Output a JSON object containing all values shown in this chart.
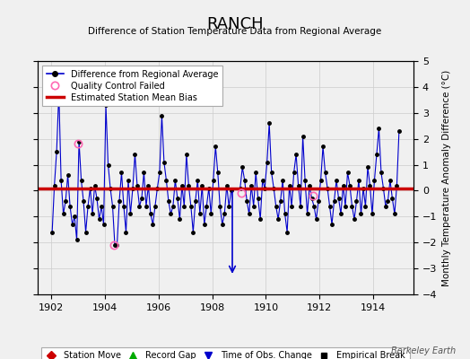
{
  "title": "RANCH",
  "subtitle": "Difference of Station Temperature Data from Regional Average",
  "ylabel": "Monthly Temperature Anomaly Difference (°C)",
  "xlabel_years": [
    1902,
    1904,
    1906,
    1908,
    1910,
    1912,
    1914
  ],
  "xlim": [
    1901.5,
    1915.5
  ],
  "ylim": [
    -4,
    5
  ],
  "yticks": [
    -4,
    -3,
    -2,
    -1,
    0,
    1,
    2,
    3,
    4,
    5
  ],
  "bias_line": 0.1,
  "bias_color": "#cc0000",
  "line_color": "#0000cc",
  "marker_color": "#000000",
  "qc_color": "#ff69b4",
  "background_color": "#f0f0f0",
  "watermark": "Berkeley Earth",
  "time_of_obs_change_x": 1908.75,
  "time_of_obs_change_y1": 0.05,
  "time_of_obs_change_y2": -3.3,
  "qc_points": [
    [
      1903.0,
      1.8
    ],
    [
      1904.33,
      -2.1
    ],
    [
      1909.08,
      -0.1
    ],
    [
      1911.75,
      -0.2
    ]
  ],
  "data_x": [
    1902.042,
    1902.125,
    1902.208,
    1902.292,
    1902.375,
    1902.458,
    1902.542,
    1902.625,
    1902.708,
    1902.792,
    1902.875,
    1902.958,
    1903.042,
    1903.125,
    1903.208,
    1903.292,
    1903.375,
    1903.458,
    1903.542,
    1903.625,
    1903.708,
    1903.792,
    1903.875,
    1903.958,
    1904.042,
    1904.125,
    1904.208,
    1904.292,
    1904.375,
    1904.458,
    1904.542,
    1904.625,
    1904.708,
    1904.792,
    1904.875,
    1904.958,
    1905.042,
    1905.125,
    1905.208,
    1905.292,
    1905.375,
    1905.458,
    1905.542,
    1905.625,
    1905.708,
    1905.792,
    1905.875,
    1905.958,
    1906.042,
    1906.125,
    1906.208,
    1906.292,
    1906.375,
    1906.458,
    1906.542,
    1906.625,
    1906.708,
    1906.792,
    1906.875,
    1906.958,
    1907.042,
    1907.125,
    1907.208,
    1907.292,
    1907.375,
    1907.458,
    1907.542,
    1907.625,
    1907.708,
    1907.792,
    1907.875,
    1907.958,
    1908.042,
    1908.125,
    1908.208,
    1908.292,
    1908.375,
    1908.458,
    1908.542,
    1908.625,
    1908.708,
    1909.042,
    1909.125,
    1909.208,
    1909.292,
    1909.375,
    1909.458,
    1909.542,
    1909.625,
    1909.708,
    1909.792,
    1909.875,
    1909.958,
    1910.042,
    1910.125,
    1910.208,
    1910.292,
    1910.375,
    1910.458,
    1910.542,
    1910.625,
    1910.708,
    1910.792,
    1910.875,
    1910.958,
    1911.042,
    1911.125,
    1911.208,
    1911.292,
    1911.375,
    1911.458,
    1911.542,
    1911.625,
    1911.708,
    1911.792,
    1911.875,
    1911.958,
    1912.042,
    1912.125,
    1912.208,
    1912.292,
    1912.375,
    1912.458,
    1912.542,
    1912.625,
    1912.708,
    1912.792,
    1912.875,
    1912.958,
    1913.042,
    1913.125,
    1913.208,
    1913.292,
    1913.375,
    1913.458,
    1913.542,
    1913.625,
    1913.708,
    1913.792,
    1913.875,
    1913.958,
    1914.042,
    1914.125,
    1914.208,
    1914.292,
    1914.375,
    1914.458,
    1914.542,
    1914.625,
    1914.708,
    1914.792,
    1914.875,
    1914.958
  ],
  "data_y": [
    -1.6,
    0.2,
    1.5,
    3.8,
    0.4,
    -0.9,
    -0.4,
    0.6,
    -0.6,
    -1.3,
    -1.0,
    -1.9,
    1.9,
    0.4,
    -0.4,
    -1.6,
    -0.6,
    0.1,
    -0.9,
    0.2,
    -0.3,
    -1.1,
    -0.6,
    -1.3,
    3.3,
    1.0,
    0.1,
    -0.6,
    -2.1,
    -2.1,
    -0.4,
    0.7,
    -0.6,
    -1.6,
    0.4,
    -0.9,
    0.1,
    1.4,
    0.2,
    -0.6,
    -0.3,
    0.7,
    -0.6,
    0.2,
    -0.9,
    -1.3,
    -0.6,
    0.1,
    0.7,
    2.9,
    1.1,
    0.4,
    -0.4,
    -0.9,
    -0.6,
    0.4,
    -0.3,
    -1.1,
    0.2,
    -0.6,
    1.4,
    0.2,
    -0.6,
    -1.6,
    -0.4,
    0.4,
    -0.9,
    0.2,
    -1.3,
    -0.6,
    0.1,
    -0.9,
    0.4,
    1.7,
    0.7,
    -0.6,
    -1.3,
    -0.9,
    0.2,
    -0.6,
    0.0,
    0.1,
    0.9,
    0.4,
    -0.4,
    -0.9,
    0.2,
    -0.6,
    0.7,
    -0.3,
    -1.1,
    0.4,
    0.1,
    1.1,
    2.6,
    0.7,
    0.1,
    -0.6,
    -1.1,
    -0.4,
    0.4,
    -0.9,
    -1.6,
    0.2,
    -0.6,
    0.7,
    1.4,
    0.2,
    -0.6,
    2.1,
    0.4,
    -0.9,
    0.2,
    -0.3,
    -0.6,
    -1.1,
    -0.4,
    0.4,
    1.7,
    0.7,
    0.1,
    -0.6,
    -1.3,
    -0.4,
    0.4,
    -0.3,
    -0.9,
    0.2,
    -0.6,
    0.7,
    0.2,
    -0.6,
    -1.1,
    -0.4,
    0.4,
    -0.9,
    0.1,
    -0.6,
    0.9,
    0.2,
    -0.9,
    0.4,
    1.4,
    2.4,
    0.7,
    0.1,
    -0.6,
    -0.4,
    0.4,
    -0.3,
    -0.9,
    0.2,
    2.3
  ]
}
